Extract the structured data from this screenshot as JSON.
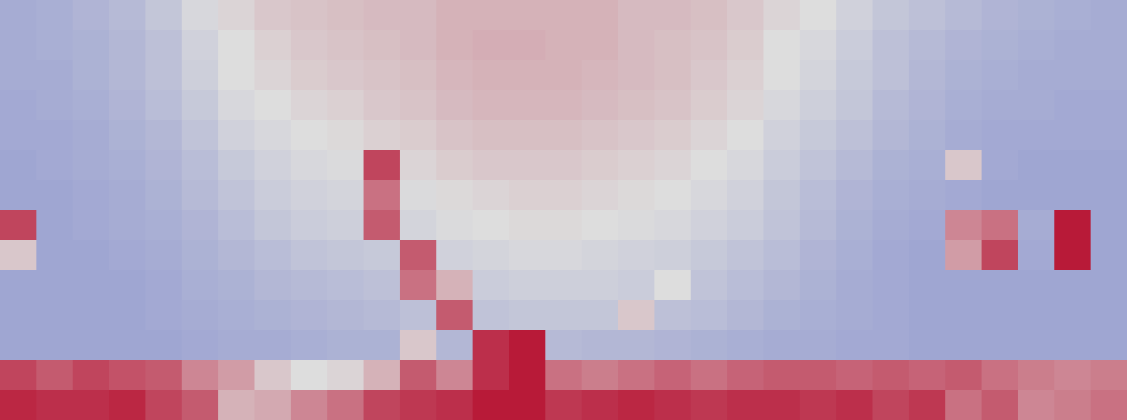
{
  "chart_data": {
    "type": "heatmap",
    "tick_labels": false,
    "color_range": [
      0,
      1
    ],
    "cells": [
      [
        0.33,
        0.34,
        0.36,
        0.38,
        0.42,
        0.48,
        0.52,
        0.55,
        0.56,
        0.57,
        0.58,
        0.58,
        0.6,
        0.6,
        0.6,
        0.6,
        0.6,
        0.58,
        0.58,
        0.57,
        0.55,
        0.52,
        0.5,
        0.46,
        0.42,
        0.4,
        0.38,
        0.36,
        0.35,
        0.34,
        0.33
      ],
      [
        0.33,
        0.34,
        0.35,
        0.37,
        0.4,
        0.46,
        0.5,
        0.53,
        0.55,
        0.56,
        0.57,
        0.58,
        0.6,
        0.61,
        0.61,
        0.6,
        0.6,
        0.58,
        0.57,
        0.56,
        0.54,
        0.5,
        0.48,
        0.44,
        0.4,
        0.38,
        0.36,
        0.35,
        0.34,
        0.33,
        0.33
      ],
      [
        0.33,
        0.33,
        0.35,
        0.37,
        0.4,
        0.45,
        0.5,
        0.52,
        0.54,
        0.55,
        0.56,
        0.57,
        0.59,
        0.6,
        0.6,
        0.6,
        0.59,
        0.58,
        0.57,
        0.55,
        0.53,
        0.5,
        0.47,
        0.43,
        0.4,
        0.37,
        0.35,
        0.34,
        0.33,
        0.33,
        0.33
      ],
      [
        0.32,
        0.33,
        0.34,
        0.36,
        0.39,
        0.43,
        0.48,
        0.5,
        0.52,
        0.53,
        0.55,
        0.56,
        0.58,
        0.59,
        0.59,
        0.59,
        0.58,
        0.57,
        0.56,
        0.54,
        0.52,
        0.48,
        0.45,
        0.42,
        0.38,
        0.36,
        0.34,
        0.33,
        0.33,
        0.32,
        0.32
      ],
      [
        0.32,
        0.32,
        0.33,
        0.35,
        0.37,
        0.41,
        0.46,
        0.48,
        0.5,
        0.51,
        0.53,
        0.54,
        0.56,
        0.57,
        0.57,
        0.57,
        0.56,
        0.55,
        0.54,
        0.52,
        0.5,
        0.46,
        0.43,
        0.4,
        0.37,
        0.35,
        0.33,
        0.32,
        0.32,
        0.32,
        0.32
      ],
      [
        0.31,
        0.32,
        0.33,
        0.34,
        0.36,
        0.39,
        0.43,
        0.46,
        0.48,
        0.49,
        0.85,
        0.52,
        0.54,
        0.55,
        0.55,
        0.55,
        0.54,
        0.53,
        0.52,
        0.5,
        0.48,
        0.44,
        0.41,
        0.38,
        0.35,
        0.34,
        0.55,
        0.32,
        0.31,
        0.31,
        0.31
      ],
      [
        0.31,
        0.31,
        0.32,
        0.33,
        0.35,
        0.38,
        0.41,
        0.44,
        0.46,
        0.47,
        0.75,
        0.49,
        0.51,
        0.52,
        0.53,
        0.53,
        0.52,
        0.51,
        0.5,
        0.48,
        0.46,
        0.42,
        0.39,
        0.36,
        0.34,
        0.33,
        0.32,
        0.31,
        0.31,
        0.31,
        0.31
      ],
      [
        0.85,
        0.31,
        0.32,
        0.33,
        0.34,
        0.36,
        0.39,
        0.42,
        0.44,
        0.45,
        0.8,
        0.47,
        0.49,
        0.5,
        0.51,
        0.51,
        0.5,
        0.49,
        0.48,
        0.46,
        0.44,
        0.41,
        0.38,
        0.35,
        0.33,
        0.32,
        0.7,
        0.75,
        0.33,
        0.95,
        0.31
      ],
      [
        0.55,
        0.31,
        0.31,
        0.32,
        0.33,
        0.35,
        0.37,
        0.39,
        0.41,
        0.42,
        0.43,
        0.8,
        0.46,
        0.47,
        0.48,
        0.48,
        0.47,
        0.46,
        0.45,
        0.43,
        0.41,
        0.39,
        0.36,
        0.34,
        0.32,
        0.31,
        0.65,
        0.85,
        0.32,
        0.95,
        0.31
      ],
      [
        0.31,
        0.31,
        0.31,
        0.31,
        0.32,
        0.34,
        0.35,
        0.37,
        0.38,
        0.39,
        0.4,
        0.75,
        0.6,
        0.44,
        0.45,
        0.45,
        0.45,
        0.44,
        0.5,
        0.41,
        0.39,
        0.37,
        0.35,
        0.33,
        0.32,
        0.31,
        0.31,
        0.31,
        0.31,
        0.31,
        0.31
      ],
      [
        0.31,
        0.31,
        0.31,
        0.31,
        0.32,
        0.33,
        0.34,
        0.35,
        0.36,
        0.37,
        0.38,
        0.4,
        0.8,
        0.41,
        0.42,
        0.42,
        0.42,
        0.55,
        0.4,
        0.39,
        0.37,
        0.35,
        0.34,
        0.33,
        0.32,
        0.31,
        0.31,
        0.31,
        0.31,
        0.31,
        0.31
      ],
      [
        0.31,
        0.31,
        0.31,
        0.31,
        0.31,
        0.32,
        0.33,
        0.33,
        0.34,
        0.35,
        0.35,
        0.55,
        0.37,
        0.9,
        0.95,
        0.38,
        0.37,
        0.37,
        0.36,
        0.35,
        0.34,
        0.33,
        0.33,
        0.32,
        0.32,
        0.31,
        0.31,
        0.31,
        0.31,
        0.31,
        0.31
      ],
      [
        0.85,
        0.8,
        0.85,
        0.82,
        0.8,
        0.7,
        0.65,
        0.55,
        0.5,
        0.52,
        0.6,
        0.8,
        0.7,
        0.9,
        0.95,
        0.75,
        0.72,
        0.75,
        0.78,
        0.75,
        0.78,
        0.8,
        0.8,
        0.78,
        0.8,
        0.78,
        0.8,
        0.75,
        0.72,
        0.7,
        0.72
      ],
      [
        0.92,
        0.9,
        0.9,
        0.92,
        0.85,
        0.8,
        0.6,
        0.62,
        0.7,
        0.75,
        0.85,
        0.88,
        0.9,
        0.95,
        0.95,
        0.88,
        0.9,
        0.92,
        0.9,
        0.88,
        0.9,
        0.9,
        0.88,
        0.9,
        0.85,
        0.88,
        0.75,
        0.8,
        0.7,
        0.72,
        0.75
      ]
    ]
  }
}
